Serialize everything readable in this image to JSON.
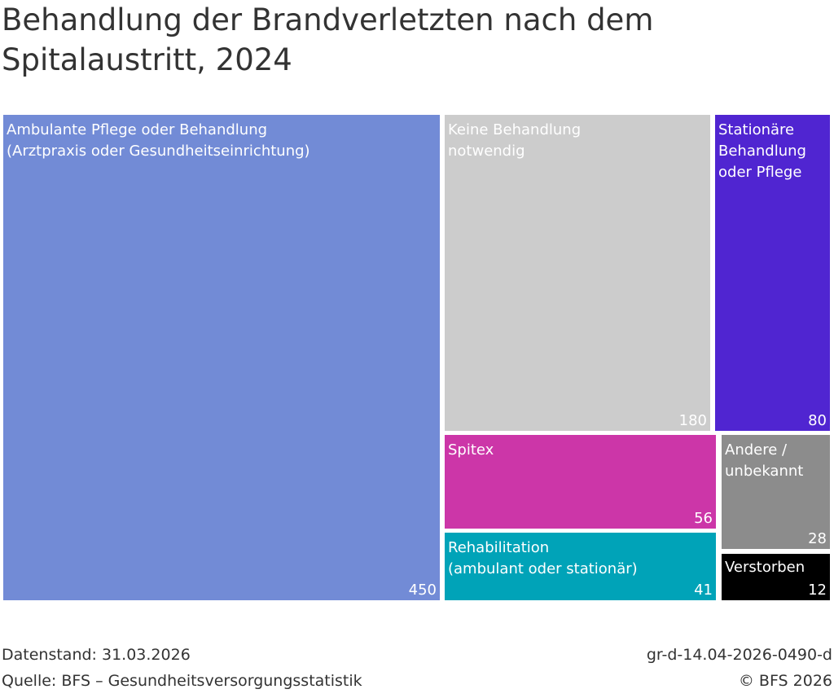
{
  "chart_data": {
    "type": "treemap",
    "title": "Behandlung der Brandverletzten nach dem Spitalaustritt, 2024",
    "items": [
      {
        "label": "Ambulante Pflege oder Behandlung\n(Arztpraxis oder Gesundheitseinrichtung)",
        "value": 450,
        "color": "#728BD6"
      },
      {
        "label": "Keine Behandlung\nnotwendig",
        "value": 180,
        "color": "#CCCCCC"
      },
      {
        "label": "Stationäre\nBehandlung\noder Pflege",
        "value": 80,
        "color": "#5025D1"
      },
      {
        "label": "Spitex",
        "value": 56,
        "color": "#CC36A8"
      },
      {
        "label": "Rehabilitation\n(ambulant oder stationär)",
        "value": 41,
        "color": "#00A3B8"
      },
      {
        "label": "Andere /\nunbekannt",
        "value": 28,
        "color": "#8C8C8C"
      },
      {
        "label": "Verstorben",
        "value": 12,
        "color": "#000000"
      }
    ]
  },
  "footer": {
    "datenstand": "Datenstand: 31.03.2026",
    "quelle": "Quelle: BFS – Gesundheitsversorgungsstatistik",
    "code": "gr-d-14.04-2026-0490-d",
    "copyright": "© BFS 2026"
  }
}
